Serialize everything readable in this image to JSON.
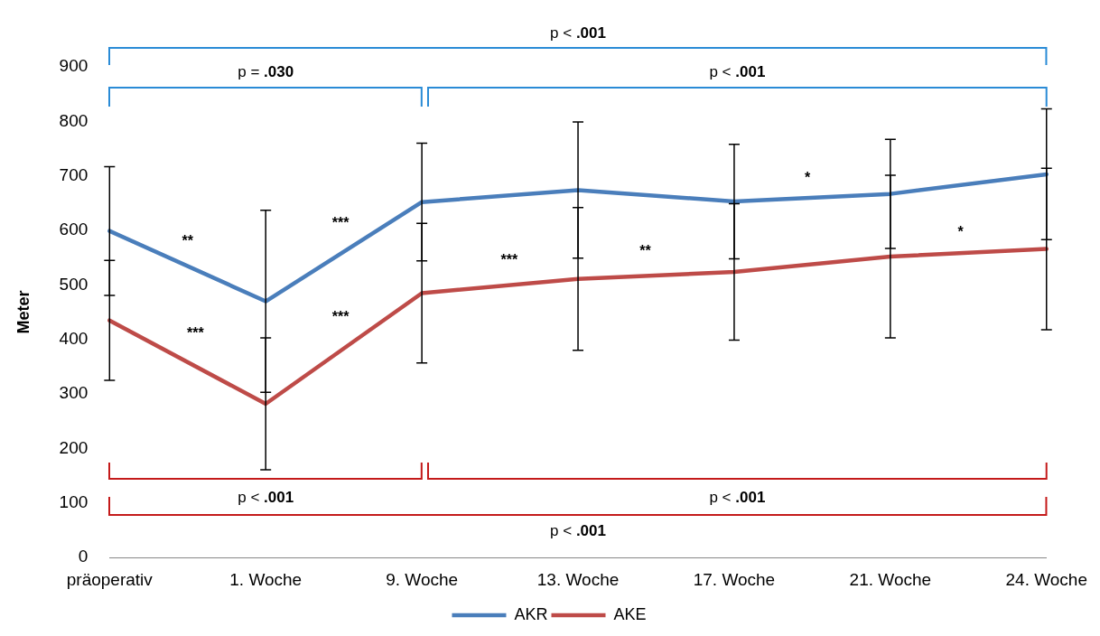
{
  "chart_data": {
    "type": "line",
    "ylabel": "Meter",
    "categories": [
      "präoperativ",
      "1. Woche",
      "9. Woche",
      "13. Woche",
      "17. Woche",
      "21. Woche",
      "24. Woche"
    ],
    "series": [
      {
        "name": "AKR",
        "color": "#4a7ebb",
        "values": [
          599,
          470,
          652,
          674,
          653,
          667,
          703
        ],
        "errors": [
          118,
          167,
          108,
          125,
          105,
          100,
          120
        ]
      },
      {
        "name": "AKE",
        "color": "#be4b48",
        "values": [
          435,
          282,
          485,
          511,
          524,
          552,
          566
        ],
        "errors": [
          110,
          121,
          128,
          131,
          125,
          149,
          148
        ]
      }
    ],
    "ylim": [
      0,
      900
    ],
    "yticks": [
      0,
      100,
      200,
      300,
      400,
      500,
      600,
      700,
      800,
      900
    ],
    "grid": false,
    "legend": "bottom",
    "marker": "none",
    "line_style": "solid",
    "annotations": [
      "p < .001",
      "p = .030",
      "p < .001",
      "**",
      "***",
      "***",
      "***",
      "***",
      "**",
      "*",
      "*",
      "p < .001",
      "p < .001",
      "p < .001"
    ]
  }
}
